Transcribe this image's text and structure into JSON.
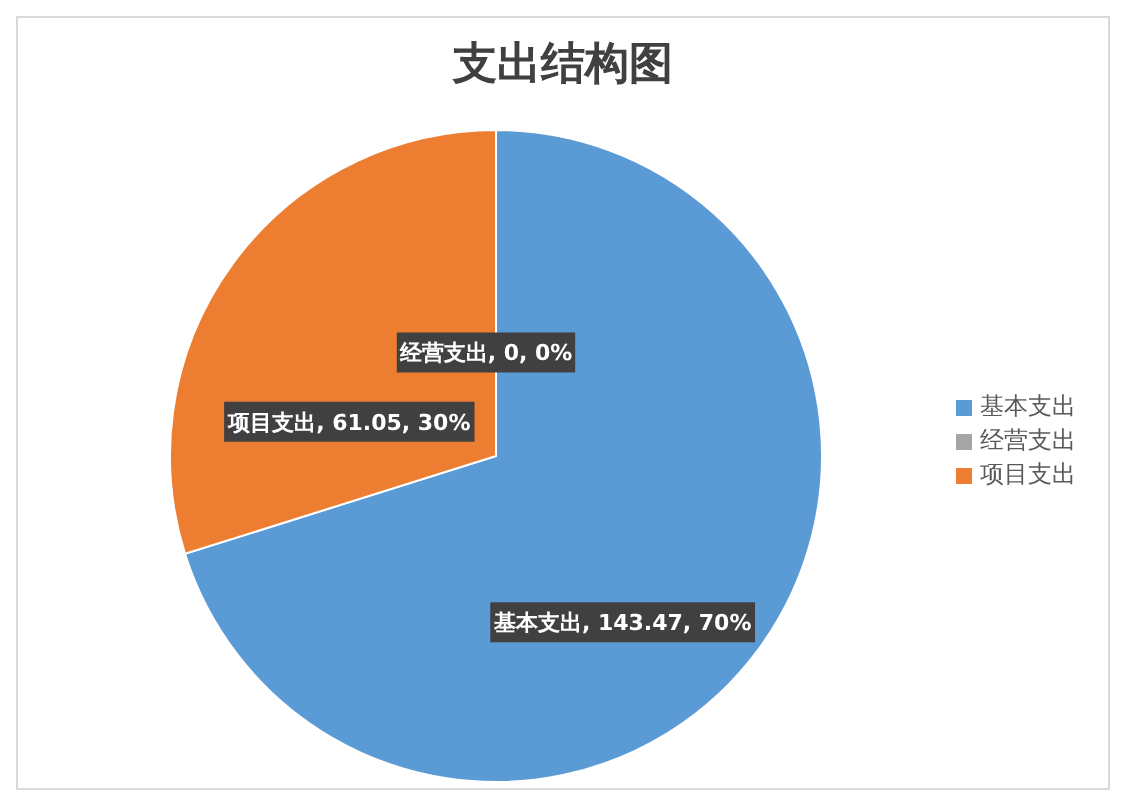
{
  "chart_data": {
    "type": "pie",
    "title": "支出结构图",
    "categories": [
      "基本支出",
      "项目支出",
      "经营支出"
    ],
    "values": [
      143.47,
      61.05,
      0
    ],
    "colors": [
      "#5b9bd5",
      "#ed7d31",
      "#a5a5a5"
    ],
    "value_labels": [
      "基本支出, 143.47, 70%",
      "项目支出, 61.05, 30%",
      "经营支出, 0, 0%"
    ],
    "legend": "right"
  }
}
